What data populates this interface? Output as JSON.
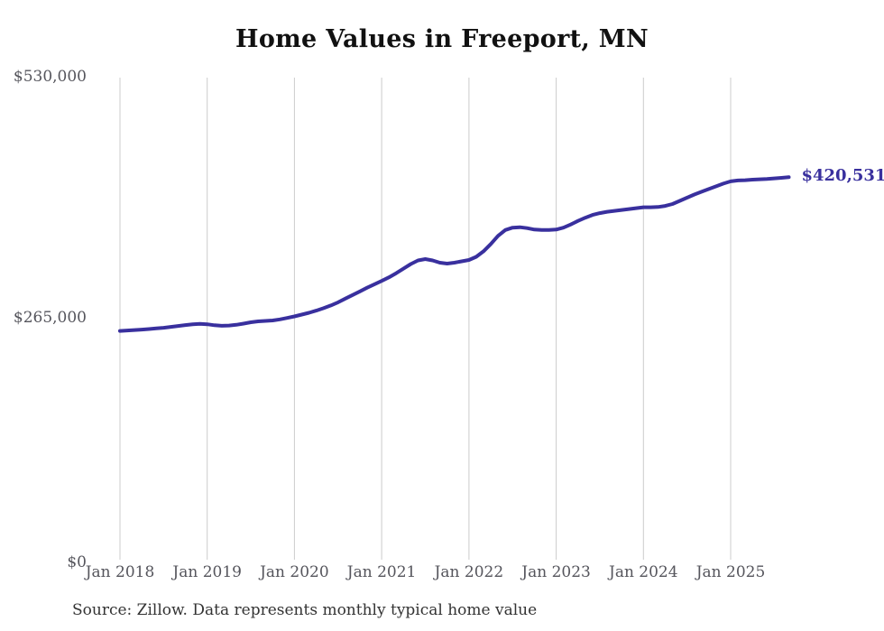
{
  "chart": {
    "title": "Home Values in Freeport, MN",
    "source_note": "Source: Zillow. Data represents monthly typical home value",
    "current_value_label": "$420,531"
  },
  "chart_data": {
    "type": "line",
    "title": "Home Values in Freeport, MN",
    "series_name": "Monthly typical home value",
    "x": [
      "2018-01",
      "2018-02",
      "2018-03",
      "2018-04",
      "2018-05",
      "2018-06",
      "2018-07",
      "2018-08",
      "2018-09",
      "2018-10",
      "2018-11",
      "2018-12",
      "2019-01",
      "2019-02",
      "2019-03",
      "2019-04",
      "2019-05",
      "2019-06",
      "2019-07",
      "2019-08",
      "2019-09",
      "2019-10",
      "2019-11",
      "2019-12",
      "2020-01",
      "2020-02",
      "2020-03",
      "2020-04",
      "2020-05",
      "2020-06",
      "2020-07",
      "2020-08",
      "2020-09",
      "2020-10",
      "2020-11",
      "2020-12",
      "2021-01",
      "2021-02",
      "2021-03",
      "2021-04",
      "2021-05",
      "2021-06",
      "2021-07",
      "2021-08",
      "2021-09",
      "2021-10",
      "2021-11",
      "2021-12",
      "2022-01",
      "2022-02",
      "2022-03",
      "2022-04",
      "2022-05",
      "2022-06",
      "2022-07",
      "2022-08",
      "2022-09",
      "2022-10",
      "2022-11",
      "2022-12",
      "2023-01",
      "2023-02",
      "2023-03",
      "2023-04",
      "2023-05",
      "2023-06",
      "2023-07",
      "2023-08",
      "2023-09",
      "2023-10",
      "2023-11",
      "2023-12",
      "2024-01",
      "2024-02",
      "2024-03",
      "2024-04",
      "2024-05",
      "2024-06",
      "2024-07",
      "2024-08",
      "2024-09",
      "2024-10",
      "2024-11",
      "2024-12",
      "2025-01",
      "2025-02",
      "2025-03",
      "2025-04",
      "2025-05",
      "2025-06",
      "2025-07",
      "2025-08",
      "2025-09"
    ],
    "values": [
      251500,
      252000,
      252500,
      253000,
      253600,
      254300,
      255000,
      256000,
      257000,
      258000,
      258800,
      259200,
      258800,
      257800,
      257200,
      257500,
      258300,
      259500,
      261000,
      262000,
      262500,
      263000,
      264200,
      265800,
      267500,
      269500,
      271500,
      273800,
      276500,
      279500,
      283000,
      287000,
      291000,
      295000,
      299000,
      302800,
      306500,
      310500,
      315000,
      320000,
      325000,
      329000,
      330500,
      329000,
      326500,
      325500,
      326500,
      328000,
      329500,
      333000,
      339000,
      347000,
      356000,
      362500,
      365000,
      365500,
      364500,
      363000,
      362500,
      362500,
      363000,
      365000,
      368500,
      372500,
      376000,
      379000,
      381000,
      382500,
      383500,
      384500,
      385500,
      386500,
      387500,
      387500,
      387800,
      389000,
      391000,
      394500,
      398000,
      401500,
      404500,
      407500,
      410500,
      413500,
      416000,
      417000,
      417300,
      417800,
      418200,
      418600,
      419200,
      419800,
      420531
    ],
    "final_value": 420531,
    "end_label": "$420,531",
    "x_tick_labels": [
      "Jan 2018",
      "Jan 2019",
      "Jan 2020",
      "Jan 2021",
      "Jan 2022",
      "Jan 2023",
      "Jan 2024",
      "Jan 2025"
    ],
    "y_tick_labels": [
      "$0",
      "$265,000",
      "$530,000"
    ],
    "ylim": [
      0,
      530000
    ],
    "xlabel": "",
    "ylabel": "",
    "grid": "vertical-only",
    "legend": "none",
    "colors": {
      "line": "#39309e",
      "end_label": "#39309e",
      "grid": "#cccccc",
      "tick_text": "#55555c",
      "title_text": "#111111",
      "source_text": "#333333",
      "background": "#ffffff"
    }
  }
}
